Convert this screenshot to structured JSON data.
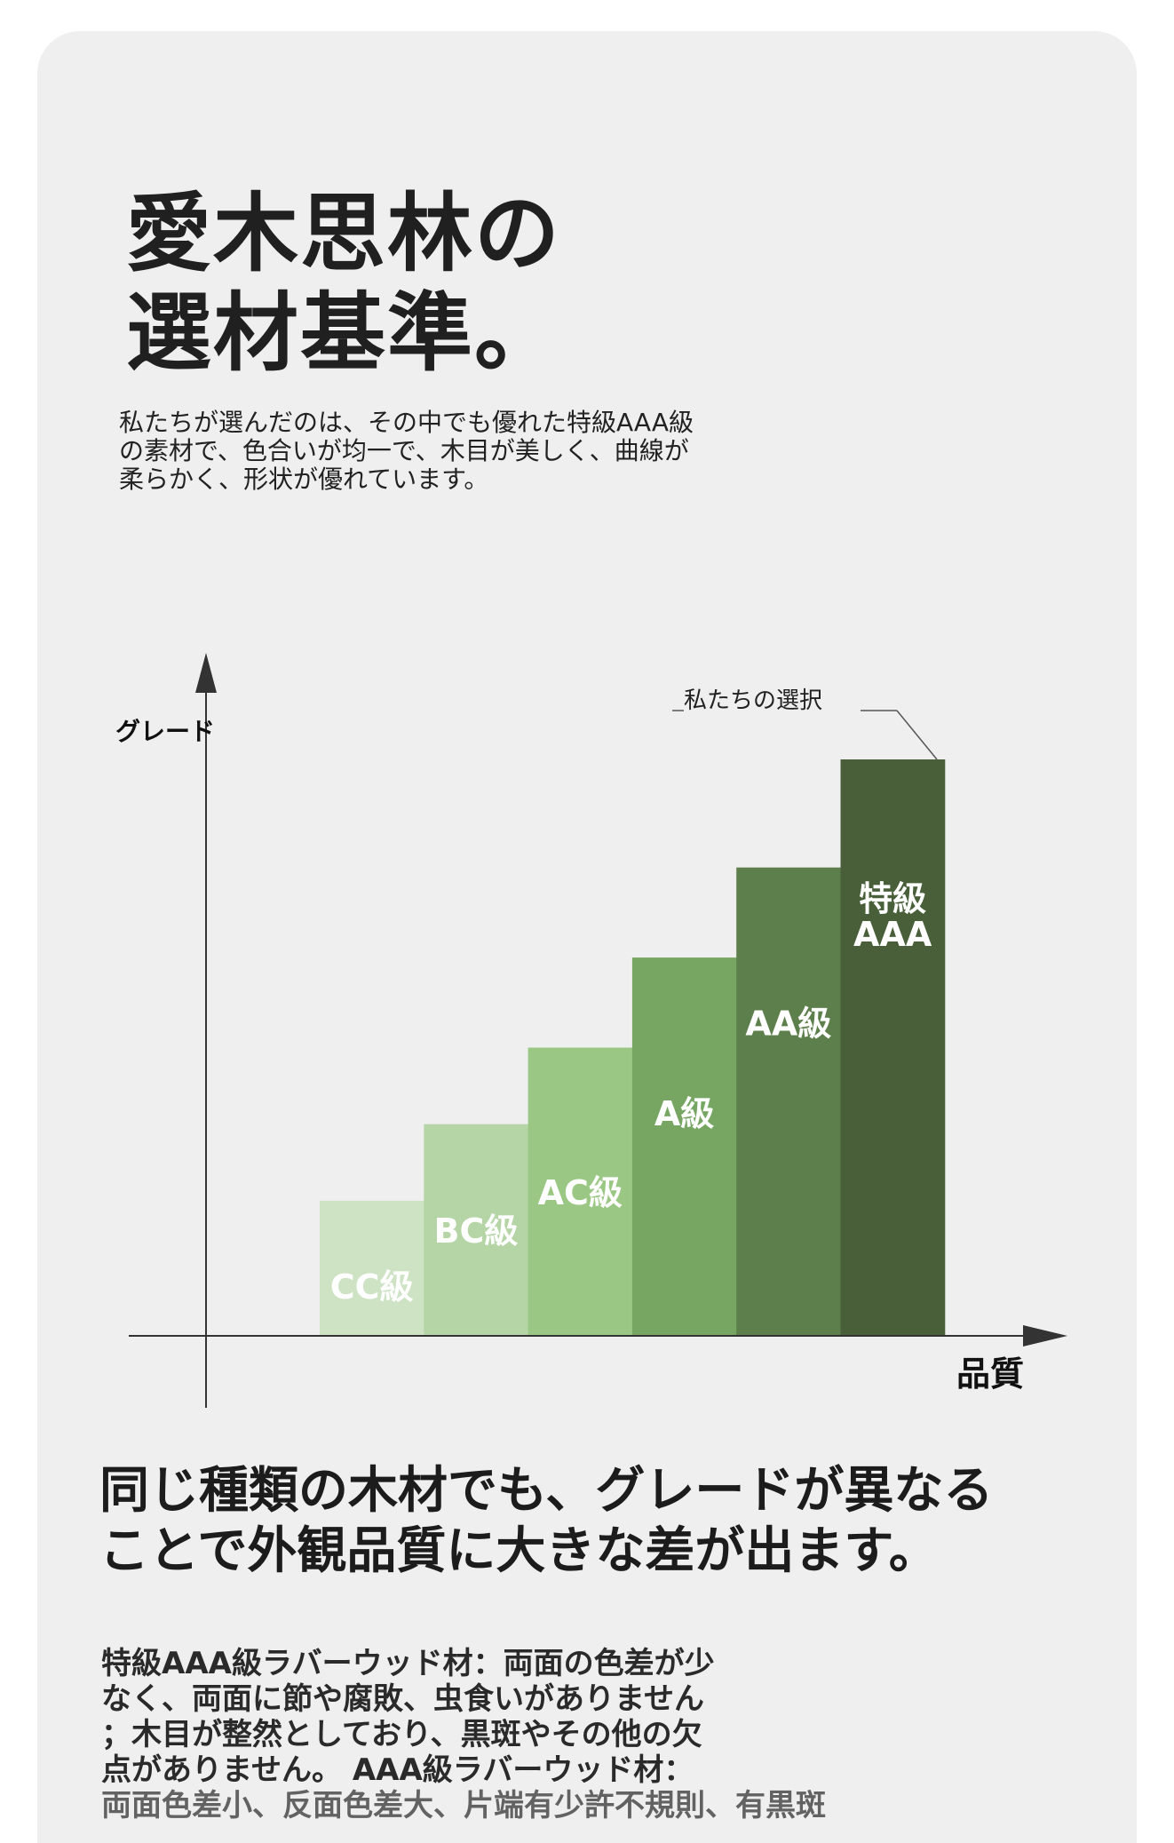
{
  "title": {
    "lines": [
      "愛木思林の",
      "選材基準。"
    ]
  },
  "intro": {
    "lines": [
      "私たちが選んだのは、その中でも優れた特級AAA級",
      "の素材で、色合いが均一で、木目が美しく、曲線が",
      "柔らかく、形状が優れています。"
    ]
  },
  "chart_data": {
    "type": "bar",
    "categories": [
      "CC級",
      "BC級",
      "AC級",
      "A級",
      "AA級",
      "特級\nAAA"
    ],
    "values": [
      1.5,
      2.35,
      3.2,
      4.2,
      5.2,
      6.4
    ],
    "ylim": [
      0,
      7
    ],
    "ylabel": "グレード",
    "xlabel": "品質",
    "annotation": "私たちの選択",
    "colors": [
      "#cde3c4",
      "#b5d5a6",
      "#9ac783",
      "#77a663",
      "#5d7f4b",
      "#485f3a"
    ],
    "label_color": "#ffffff"
  },
  "headline": {
    "lines": [
      "同じ種類の木材でも、グレードが異なる",
      "ことで外観品質に大きな差が出ます。"
    ]
  },
  "detail": {
    "lines": [
      "特級AAA級ラバーウッド材：両面の色差が少",
      "なく、両面に節や腐敗、虫食いがありません",
      "；木目が整然としており、黒斑やその他の欠",
      "点がありません。 AAA級ラバーウッド材：",
      "両面色差小、反面色差大、片端有少許不規則、有黒斑"
    ]
  }
}
